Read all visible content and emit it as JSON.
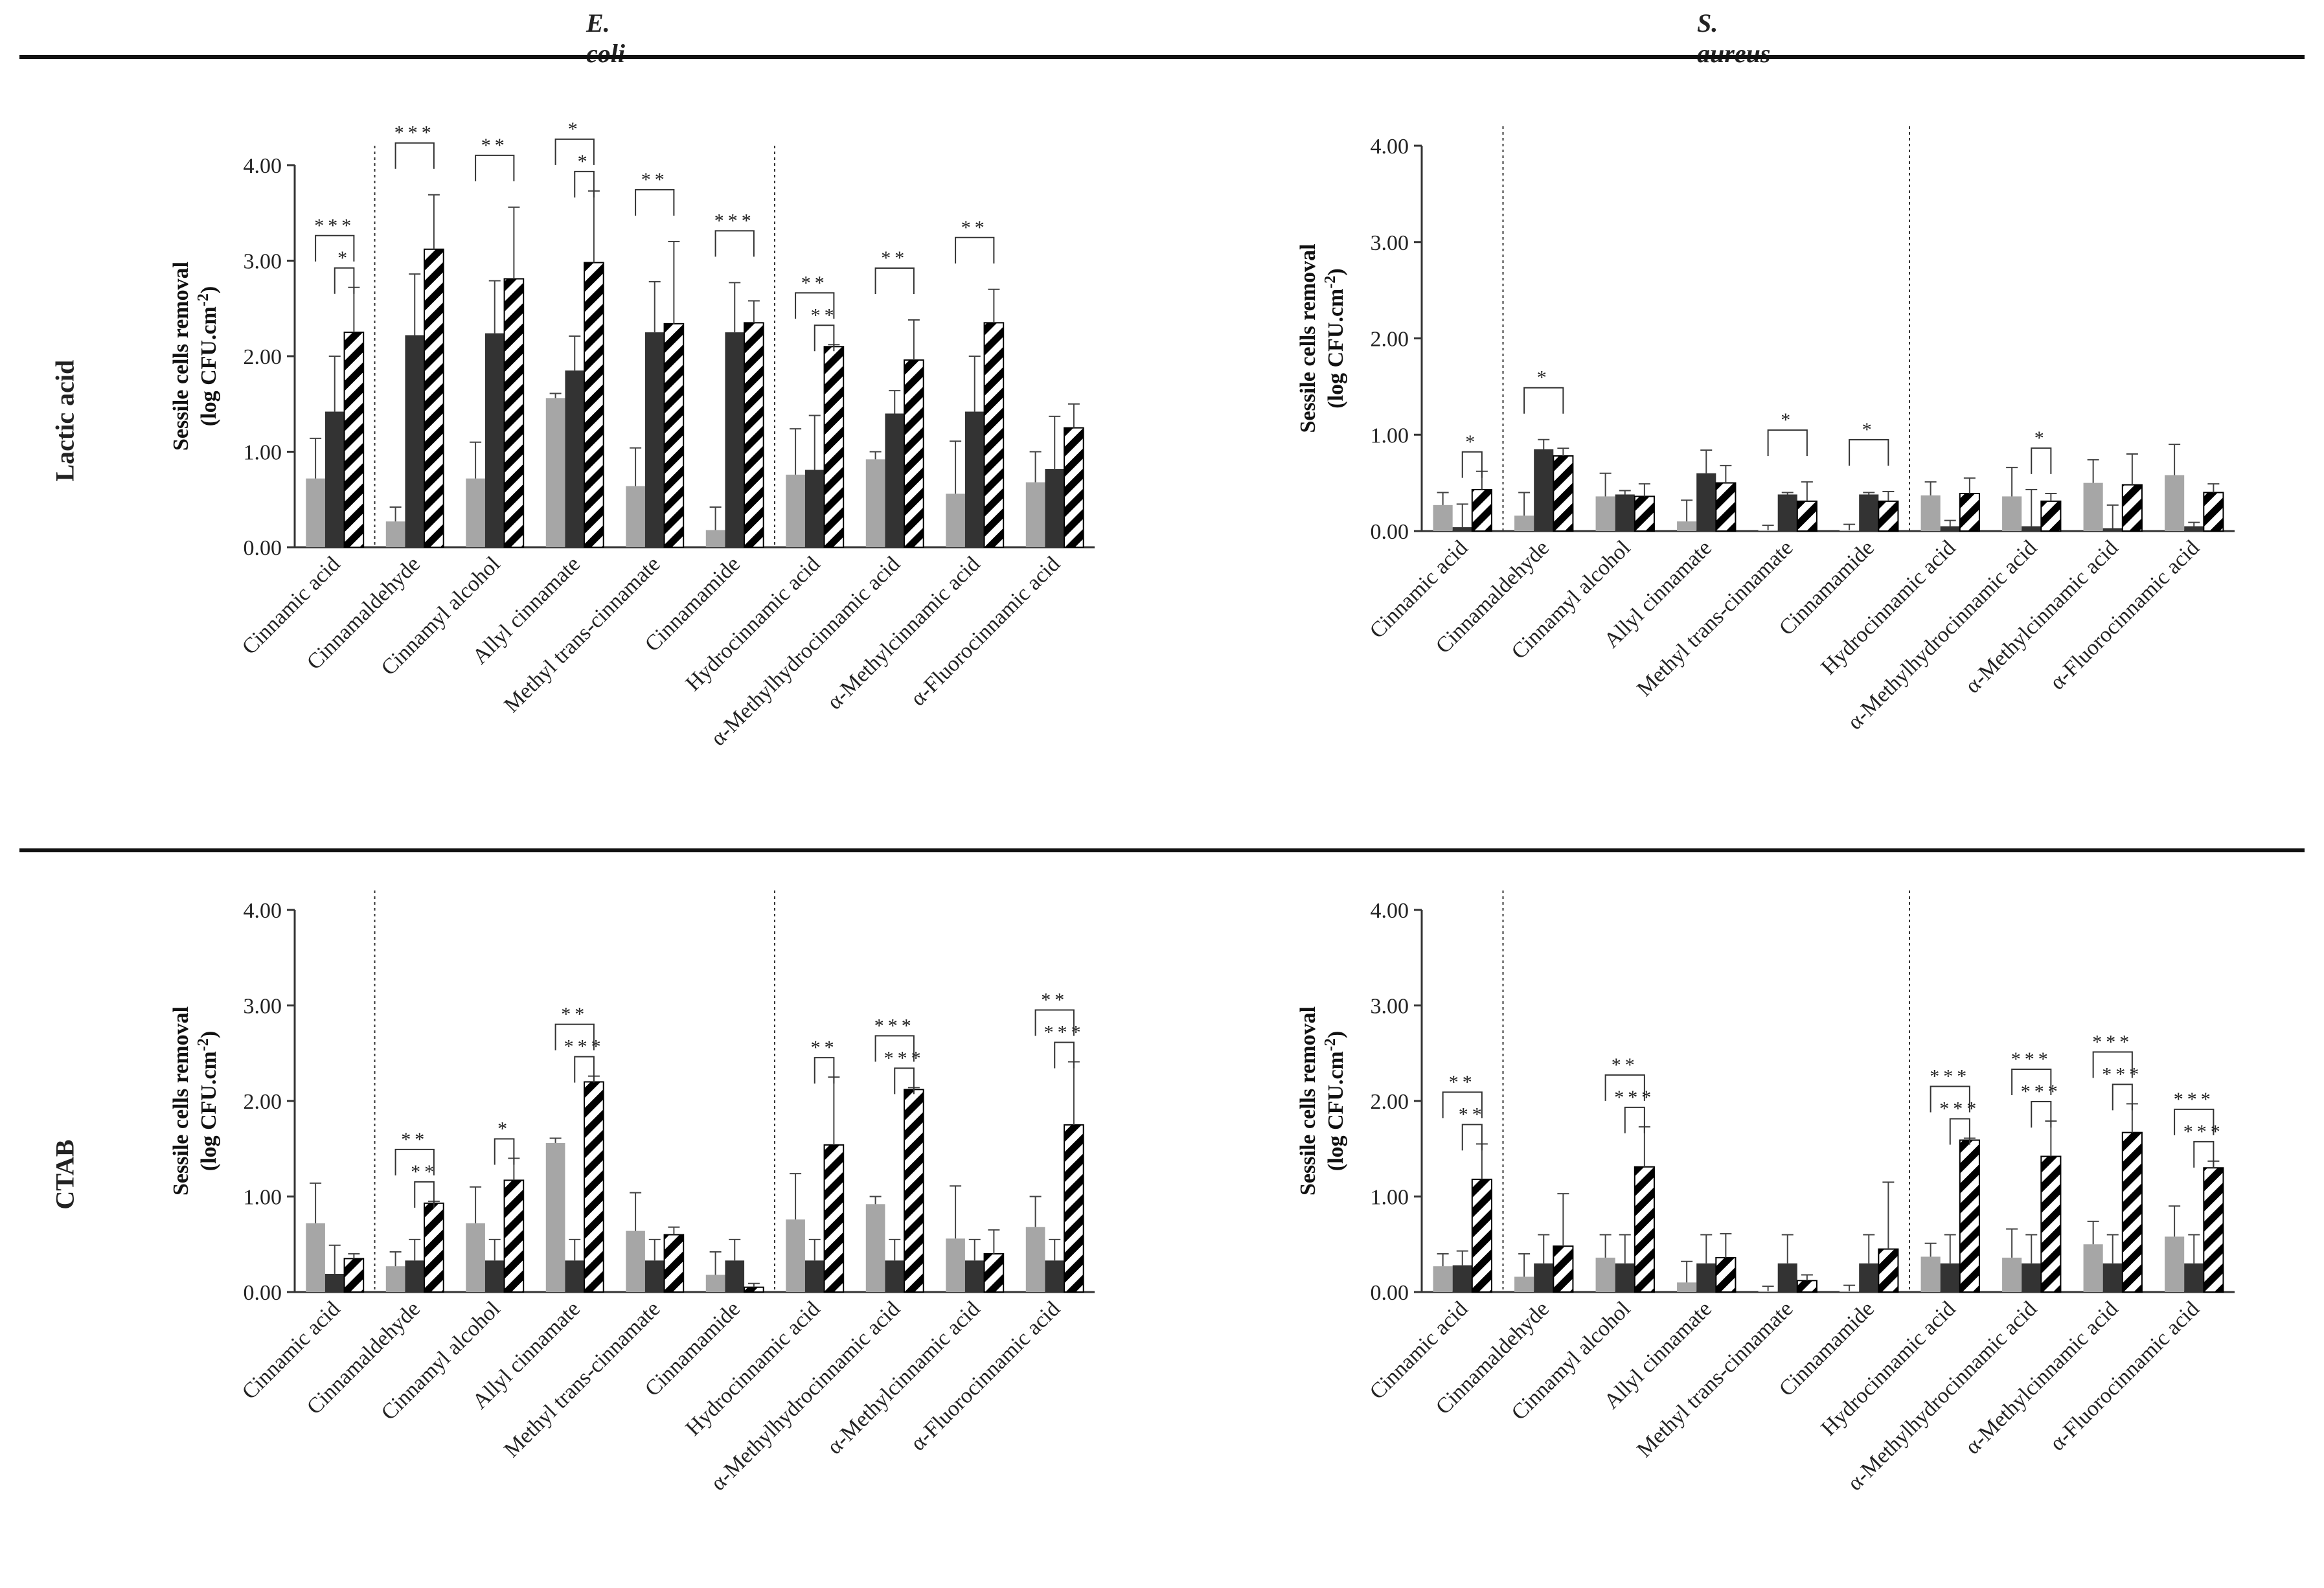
{
  "columns": [
    "E. coli",
    "S. aureus"
  ],
  "rows": [
    "Lactic acid",
    "CTAB"
  ],
  "ylabel_line1": "Sessile cells removal",
  "ylabel_line2_base": "(log CFU.cm",
  "ylabel_line2_sup": "-2",
  "ylabel_line2_end": ")",
  "colors": {
    "light": "#a6a6a6",
    "dark": "#333333",
    "hatch": "#000000",
    "axis": "#333333"
  },
  "chart_data": [
    {
      "id": "ecoli-lactic",
      "type": "bar",
      "title": "E. coli",
      "row_label": "Lactic acid",
      "categories": [
        "Cinnamic acid",
        "Cinnamaldehyde",
        "Cinnamyl alcohol",
        "Allyl cinnamate",
        "Methyl trans-cinnamate",
        "Cinnamamide",
        "Hydrocinnamic acid",
        "α-Methylhydrocinnamic acid",
        "α-Methylcinnamic acid",
        "α-Fluorocinnamic acid"
      ],
      "yticks": [
        "0.00",
        "1.00",
        "2.00",
        "3.00",
        "4.00"
      ],
      "ylim": [
        0,
        4
      ],
      "series": [
        {
          "name": "gray",
          "values": [
            0.72,
            0.27,
            0.72,
            1.56,
            0.64,
            0.18,
            0.76,
            0.92,
            0.56,
            0.68
          ],
          "errors": [
            0.42,
            0.15,
            0.38,
            0.05,
            0.4,
            0.24,
            0.48,
            0.08,
            0.55,
            0.32
          ]
        },
        {
          "name": "black",
          "values": [
            1.42,
            2.22,
            2.24,
            1.85,
            2.25,
            2.25,
            0.81,
            1.4,
            1.42,
            0.82
          ],
          "errors": [
            0.58,
            0.64,
            0.55,
            0.36,
            0.53,
            0.52,
            0.57,
            0.24,
            0.58,
            0.55
          ]
        },
        {
          "name": "hatched",
          "values": [
            2.25,
            3.12,
            2.81,
            2.98,
            2.34,
            2.35,
            2.1,
            1.96,
            2.35,
            1.25
          ],
          "errors": [
            0.47,
            0.57,
            0.75,
            0.75,
            0.86,
            0.23,
            0.02,
            0.42,
            0.35,
            0.25
          ]
        }
      ],
      "dividers_after": [
        0,
        5
      ],
      "significance": [
        {
          "cat": 0,
          "pair": "gh",
          "label": "***"
        },
        {
          "cat": 0,
          "pair": "bh",
          "label": "*"
        },
        {
          "cat": 1,
          "pair": "gh",
          "label": "***"
        },
        {
          "cat": 2,
          "pair": "gh",
          "label": "**"
        },
        {
          "cat": 3,
          "pair": "gh",
          "label": "*"
        },
        {
          "cat": 3,
          "pair": "bh",
          "label": "*"
        },
        {
          "cat": 4,
          "pair": "gh",
          "label": "**"
        },
        {
          "cat": 5,
          "pair": "gh",
          "label": "***"
        },
        {
          "cat": 6,
          "pair": "gh",
          "label": "**"
        },
        {
          "cat": 6,
          "pair": "bh",
          "label": "**"
        },
        {
          "cat": 7,
          "pair": "gh",
          "label": "**"
        },
        {
          "cat": 8,
          "pair": "gh",
          "label": "**"
        }
      ]
    },
    {
      "id": "saureus-lactic",
      "type": "bar",
      "title": "S. aureus",
      "row_label": "Lactic acid",
      "categories": [
        "Cinnamic acid",
        "Cinnamaldehyde",
        "Cinnamyl alcohol",
        "Allyl cinnamate",
        "Methyl trans-cinnamate",
        "Cinnamamide",
        "Hydrocinnamic acid",
        "α-Methylhydrocinnamic acid",
        "α-Methylcinnamic acid",
        "α-Fluorocinnamic acid"
      ],
      "yticks": [
        "0.00",
        "1.00",
        "2.00",
        "3.00",
        "4.00"
      ],
      "ylim": [
        0,
        4
      ],
      "series": [
        {
          "name": "gray",
          "values": [
            0.27,
            0.16,
            0.36,
            0.1,
            0.01,
            0.01,
            0.37,
            0.36,
            0.5,
            0.58
          ],
          "errors": [
            0.13,
            0.24,
            0.24,
            0.22,
            0.05,
            0.06,
            0.14,
            0.3,
            0.24,
            0.32
          ]
        },
        {
          "name": "black",
          "values": [
            0.04,
            0.85,
            0.38,
            0.6,
            0.38,
            0.38,
            0.05,
            0.05,
            0.03,
            0.05
          ],
          "errors": [
            0.24,
            0.1,
            0.04,
            0.24,
            0.02,
            0.02,
            0.06,
            0.38,
            0.24,
            0.04
          ]
        },
        {
          "name": "hatched",
          "values": [
            0.43,
            0.78,
            0.36,
            0.5,
            0.31,
            0.31,
            0.39,
            0.31,
            0.48,
            0.4
          ],
          "errors": [
            0.19,
            0.08,
            0.13,
            0.18,
            0.2,
            0.1,
            0.16,
            0.08,
            0.32,
            0.09
          ]
        }
      ],
      "dividers_after": [
        0,
        5
      ],
      "significance": [
        {
          "cat": 0,
          "pair": "bh",
          "label": "*"
        },
        {
          "cat": 1,
          "pair": "gh",
          "label": "*"
        },
        {
          "cat": 4,
          "pair": "gh",
          "label": "*"
        },
        {
          "cat": 5,
          "pair": "gh",
          "label": "*"
        },
        {
          "cat": 7,
          "pair": "bh",
          "label": "*"
        }
      ]
    },
    {
      "id": "ecoli-ctab",
      "type": "bar",
      "title": "E. coli",
      "row_label": "CTAB",
      "categories": [
        "Cinnamic acid",
        "Cinnamaldehyde",
        "Cinnamyl alcohol",
        "Allyl cinnamate",
        "Methyl trans-cinnamate",
        "Cinnamamide",
        "Hydrocinnamic acid",
        "α-Methylhydrocinnamic acid",
        "α-Methylcinnamic acid",
        "α-Fluorocinnamic acid"
      ],
      "yticks": [
        "0.00",
        "1.00",
        "2.00",
        "3.00",
        "4.00"
      ],
      "ylim": [
        0,
        4
      ],
      "series": [
        {
          "name": "gray",
          "values": [
            0.72,
            0.27,
            0.72,
            1.56,
            0.64,
            0.18,
            0.76,
            0.92,
            0.56,
            0.68
          ],
          "errors": [
            0.42,
            0.15,
            0.38,
            0.05,
            0.4,
            0.24,
            0.48,
            0.08,
            0.55,
            0.32
          ]
        },
        {
          "name": "black",
          "values": [
            0.19,
            0.33,
            0.33,
            0.33,
            0.33,
            0.33,
            0.33,
            0.33,
            0.33,
            0.33
          ],
          "errors": [
            0.3,
            0.22,
            0.22,
            0.22,
            0.22,
            0.22,
            0.22,
            0.22,
            0.22,
            0.22
          ]
        },
        {
          "name": "hatched",
          "values": [
            0.35,
            0.93,
            1.17,
            2.2,
            0.6,
            0.05,
            1.54,
            2.12,
            0.4,
            1.75
          ],
          "errors": [
            0.05,
            0.02,
            0.23,
            0.06,
            0.08,
            0.04,
            0.71,
            0.02,
            0.25,
            0.66
          ]
        }
      ],
      "dividers_after": [
        0,
        5
      ],
      "significance": [
        {
          "cat": 1,
          "pair": "gh",
          "label": "**"
        },
        {
          "cat": 1,
          "pair": "bh",
          "label": "**"
        },
        {
          "cat": 2,
          "pair": "bh",
          "label": "*"
        },
        {
          "cat": 3,
          "pair": "gh",
          "label": "**"
        },
        {
          "cat": 3,
          "pair": "bh",
          "label": "***"
        },
        {
          "cat": 6,
          "pair": "bh",
          "label": "**"
        },
        {
          "cat": 7,
          "pair": "gh",
          "label": "***"
        },
        {
          "cat": 7,
          "pair": "bh",
          "label": "***"
        },
        {
          "cat": 9,
          "pair": "gh",
          "label": "**"
        },
        {
          "cat": 9,
          "pair": "bh",
          "label": "***"
        }
      ]
    },
    {
      "id": "saureus-ctab",
      "type": "bar",
      "title": "S. aureus",
      "row_label": "CTAB",
      "categories": [
        "Cinnamic acid",
        "Cinnamaldehyde",
        "Cinnamyl alcohol",
        "Allyl cinnamate",
        "Methyl trans-cinnamate",
        "Cinnamamide",
        "Hydrocinnamic acid",
        "α-Methylhydrocinnamic acid",
        "α-Methylcinnamic acid",
        "α-Fluorocinnamic acid"
      ],
      "yticks": [
        "0.00",
        "1.00",
        "2.00",
        "3.00",
        "4.00"
      ],
      "ylim": [
        0,
        4
      ],
      "series": [
        {
          "name": "gray",
          "values": [
            0.27,
            0.16,
            0.36,
            0.1,
            0.01,
            0.01,
            0.37,
            0.36,
            0.5,
            0.58
          ],
          "errors": [
            0.13,
            0.24,
            0.24,
            0.22,
            0.05,
            0.06,
            0.14,
            0.3,
            0.24,
            0.32
          ]
        },
        {
          "name": "black",
          "values": [
            0.28,
            0.3,
            0.3,
            0.3,
            0.3,
            0.3,
            0.3,
            0.3,
            0.3,
            0.3
          ],
          "errors": [
            0.15,
            0.3,
            0.3,
            0.3,
            0.3,
            0.3,
            0.3,
            0.3,
            0.3,
            0.3
          ]
        },
        {
          "name": "hatched",
          "values": [
            1.18,
            0.48,
            1.31,
            0.36,
            0.12,
            0.45,
            1.59,
            1.42,
            1.67,
            1.3
          ],
          "errors": [
            0.37,
            0.55,
            0.42,
            0.25,
            0.06,
            0.7,
            0.02,
            0.37,
            0.3,
            0.07
          ]
        }
      ],
      "dividers_after": [
        0,
        5
      ],
      "significance": [
        {
          "cat": 0,
          "pair": "gh",
          "label": "**"
        },
        {
          "cat": 0,
          "pair": "bh",
          "label": "**"
        },
        {
          "cat": 2,
          "pair": "gh",
          "label": "**"
        },
        {
          "cat": 2,
          "pair": "bh",
          "label": "***"
        },
        {
          "cat": 6,
          "pair": "gh",
          "label": "***"
        },
        {
          "cat": 6,
          "pair": "bh",
          "label": "***"
        },
        {
          "cat": 7,
          "pair": "gh",
          "label": "***"
        },
        {
          "cat": 7,
          "pair": "bh",
          "label": "***"
        },
        {
          "cat": 8,
          "pair": "gh",
          "label": "***"
        },
        {
          "cat": 8,
          "pair": "bh",
          "label": "***"
        },
        {
          "cat": 9,
          "pair": "gh",
          "label": "***"
        },
        {
          "cat": 9,
          "pair": "bh",
          "label": "***"
        }
      ]
    }
  ]
}
